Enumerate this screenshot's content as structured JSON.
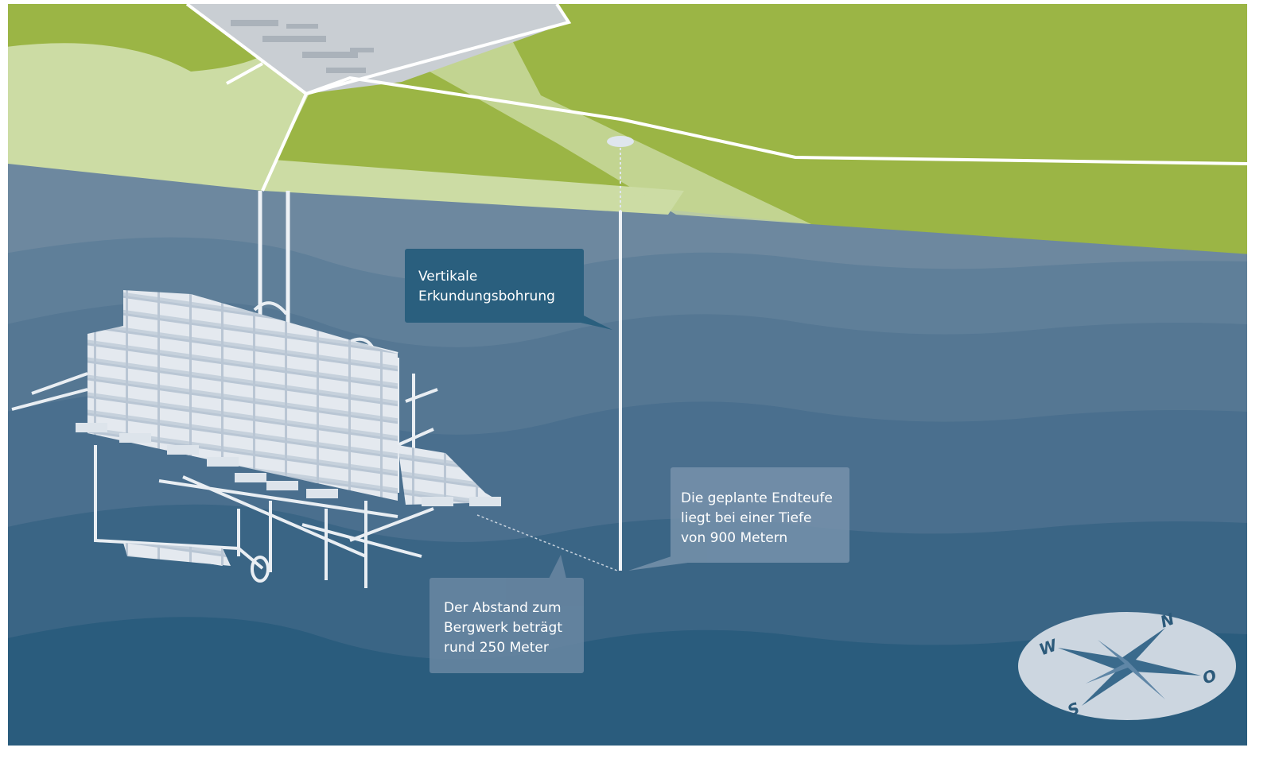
{
  "callouts": [
    {
      "lines": [
        "Vertikale",
        "Erkundungsbohrung"
      ]
    },
    {
      "lines": [
        "Die geplante Endteufe",
        "liegt bei einer Tiefe",
        "von 900 Metern"
      ]
    },
    {
      "lines": [
        "Der Abstand zum",
        "Bergwerk beträgt",
        "rund 250 Meter"
      ]
    }
  ],
  "compass": {
    "north": "N",
    "east": "O",
    "south": "S",
    "west": "W"
  }
}
